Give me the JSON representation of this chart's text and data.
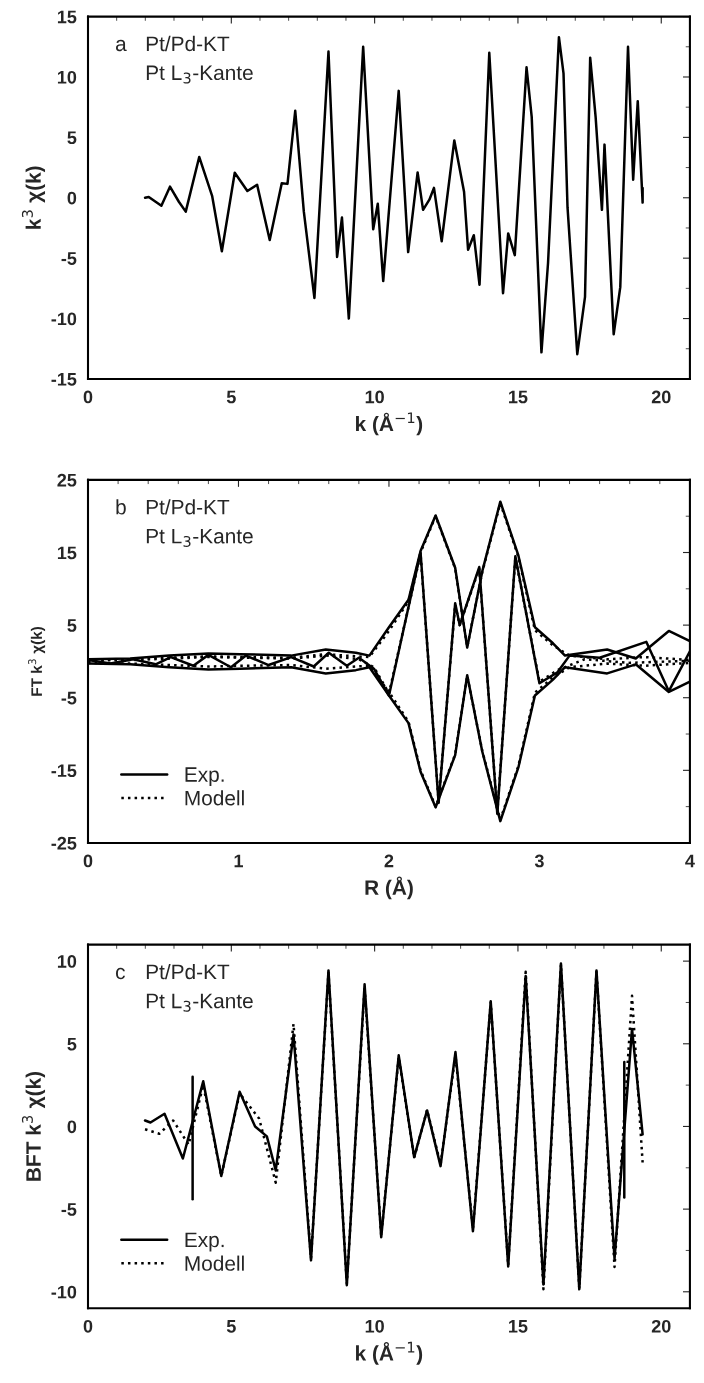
{
  "chart_data": [
    {
      "type": "line",
      "xlabel": "k (Å$^{−1}$)",
      "ylabel": "k$^{3}$ χ(k)",
      "xlim": [
        0,
        21
      ],
      "ylim": [
        -15,
        15
      ],
      "xticks": [
        0,
        5,
        10,
        15,
        20
      ],
      "yticks": [
        -15,
        -10,
        -5,
        0,
        5,
        10,
        15
      ],
      "annotations": [
        "a",
        "Pt/Pd-KT",
        "Pt L$_{3}$-Kante"
      ],
      "series": [
        {
          "color": "#000000",
          "line_style": "solid",
          "x": [
            1.99,
            2.12,
            2.56,
            2.86,
            3.17,
            3.41,
            3.88,
            4.33,
            4.67,
            5.12,
            5.56,
            5.9,
            6.34,
            6.76,
            6.96,
            7.23,
            7.53,
            7.9,
            8.39,
            8.69,
            8.86,
            9.1,
            9.6,
            9.95,
            10.11,
            10.3,
            10.84,
            11.17,
            11.5,
            11.69,
            11.91,
            12.07,
            12.34,
            12.78,
            13.12,
            13.26,
            13.46,
            13.66,
            14.0,
            14.48,
            14.66,
            14.89,
            15.3,
            15.48,
            15.82,
            16.05,
            16.43,
            16.59,
            16.73,
            17.07,
            17.34,
            17.52,
            17.71,
            17.93,
            18.02,
            18.34,
            18.57,
            18.84,
            19.02,
            19.18,
            19.35,
            19.35
          ],
          "values": [
            0,
            0.07,
            -0.66,
            0.92,
            -0.33,
            -1.15,
            3.38,
            0.16,
            -4.43,
            2.07,
            0.56,
            1.08,
            -3.5,
            1.21,
            1.15,
            7.2,
            -1.15,
            -8.3,
            12.1,
            -4.9,
            -1.64,
            -10.0,
            12.5,
            -2.6,
            -0.5,
            -6.9,
            8.85,
            -4.5,
            2.1,
            -1.0,
            -0.16,
            0.82,
            -3.6,
            4.75,
            0.5,
            -4.3,
            -3.1,
            -7.2,
            12.0,
            -7.9,
            -2.95,
            -4.75,
            10.8,
            6.7,
            -12.8,
            -5.4,
            13.3,
            10.3,
            -0.8,
            -12.95,
            -8.2,
            11.6,
            6.7,
            -1.0,
            4.4,
            -11.3,
            -7.4,
            12.5,
            1.5,
            8.0,
            -0.4,
            0.8
          ]
        }
      ]
    },
    {
      "type": "line",
      "xlabel": "R (Å)",
      "ylabel": "FT k$^{3}$ χ(k)",
      "xlim": [
        0,
        4
      ],
      "ylim": [
        -25,
        25
      ],
      "xticks": [
        0,
        1,
        2,
        3,
        4
      ],
      "yticks": [
        -25,
        -15,
        -5,
        5,
        15,
        25
      ],
      "legend": "bottom left",
      "annotations": [
        "b",
        "Pt/Pd-KT",
        "Pt L$_{3}$-Kante"
      ],
      "series": [
        {
          "name": "Exp.",
          "color": "#000000",
          "line_style": "solid",
          "x": [
            0,
            0.28,
            0.54,
            0.8,
            1.01,
            1.35,
            1.58,
            1.78,
            1.87,
            2.0,
            2.13,
            2.21,
            2.31,
            2.44,
            2.52,
            2.62,
            2.74,
            2.86,
            2.97,
            3.09,
            3.17,
            3.45,
            3.64,
            3.86,
            4.0
          ],
          "values": [
            0.3,
            0.4,
            0.8,
            1.1,
            1.0,
            0.8,
            1.65,
            1.2,
            0.8,
            4.7,
            8.5,
            15.2,
            20.1,
            12.9,
            1.9,
            12.4,
            22.0,
            14.6,
            4.7,
            2.5,
            0.8,
            1.65,
            0.4,
            4.2,
            2.8
          ]
        },
        {
          "color": "#000000",
          "line_style": "solid",
          "x": [
            0,
            0.28,
            0.54,
            0.8,
            1.01,
            1.35,
            1.58,
            1.78,
            1.87,
            2.0,
            2.13,
            2.21,
            2.31,
            2.44,
            2.52,
            2.62,
            2.74,
            2.86,
            2.97,
            3.09,
            3.17,
            3.45,
            3.64,
            3.86,
            4.0
          ],
          "values": [
            -0.3,
            -0.4,
            -0.8,
            -1.1,
            -1.0,
            -0.8,
            -1.65,
            -1.2,
            -0.8,
            -4.7,
            -8.5,
            -15.2,
            -20.1,
            -12.9,
            -1.9,
            -12.4,
            -22.0,
            -14.6,
            -4.7,
            -2.5,
            -0.8,
            -1.65,
            -0.4,
            -4.2,
            -2.8
          ]
        },
        {
          "color": "#000000",
          "line_style": "solid",
          "x": [
            0,
            0.15,
            0.3,
            0.45,
            0.55,
            0.7,
            0.8,
            0.95,
            1.05,
            1.2,
            1.35,
            1.5,
            1.6,
            1.72,
            1.8,
            1.9,
            2.0,
            2.21,
            2.33,
            2.44,
            2.47,
            2.6,
            2.72,
            2.84,
            3.0,
            3.12,
            3.2,
            3.4,
            3.71,
            3.86,
            4.0
          ],
          "values": [
            0.2,
            -0.3,
            0.3,
            -0.4,
            0.6,
            -0.6,
            0.9,
            -0.8,
            0.8,
            -0.5,
            0.6,
            -0.7,
            1.2,
            -0.6,
            0.5,
            -1.0,
            -4.7,
            15.0,
            -19.5,
            8.0,
            5.0,
            13.0,
            -21.0,
            14.5,
            -3.0,
            -1.5,
            0.8,
            0.5,
            2.7,
            -4.1,
            1.4
          ]
        },
        {
          "name": "Modell",
          "color": "#000000",
          "line_style": "dotted",
          "x": [
            0,
            0.28,
            0.54,
            0.8,
            1.01,
            1.35,
            1.58,
            1.78,
            1.87,
            2.0,
            2.13,
            2.21,
            2.31,
            2.44,
            2.52,
            2.62,
            2.74,
            2.86,
            2.97,
            3.09,
            3.2,
            3.45,
            3.7,
            4.0
          ],
          "values": [
            0.2,
            0.3,
            0.5,
            0.7,
            0.6,
            0.5,
            1.0,
            0.7,
            0.6,
            4.2,
            8.3,
            15.0,
            20.0,
            12.8,
            2.0,
            12.3,
            21.8,
            14.4,
            4.3,
            2.2,
            0.8,
            0.3,
            0.6,
            0.2
          ]
        },
        {
          "color": "#000000",
          "line_style": "dotted",
          "x": [
            0,
            0.28,
            0.54,
            0.8,
            1.01,
            1.35,
            1.58,
            1.78,
            1.87,
            2.0,
            2.13,
            2.21,
            2.31,
            2.44,
            2.52,
            2.62,
            2.74,
            2.86,
            2.97,
            3.09,
            3.2,
            3.45,
            3.7,
            4.0
          ],
          "values": [
            -0.2,
            -0.3,
            -0.5,
            -0.7,
            -0.6,
            -0.5,
            -1.0,
            -0.7,
            -0.6,
            -4.2,
            -8.3,
            -15.0,
            -20.0,
            -12.8,
            -2.0,
            -12.3,
            -21.8,
            -14.4,
            -4.3,
            -2.2,
            -0.8,
            -0.3,
            -0.6,
            -0.2
          ]
        },
        {
          "color": "#000000",
          "line_style": "dotted",
          "x": [
            0,
            0.3,
            0.55,
            0.8,
            1.05,
            1.35,
            1.6,
            1.8,
            1.9,
            2.0,
            2.21,
            2.33,
            2.44,
            2.47,
            2.6,
            2.72,
            2.84,
            3.0,
            3.12,
            3.3,
            3.6,
            4.0
          ],
          "values": [
            0.1,
            0.2,
            0.4,
            0.6,
            0.5,
            0.4,
            0.8,
            0.3,
            -0.8,
            -4.4,
            14.8,
            -19.3,
            7.8,
            5.0,
            12.8,
            -20.8,
            14.3,
            -2.8,
            -1.2,
            0.3,
            -0.2,
            0.1
          ]
        }
      ]
    },
    {
      "type": "line",
      "xlabel": "k (Å$^{−1}$)",
      "ylabel": "BFT k$^{3}$ χ(k)",
      "xlim": [
        0,
        21
      ],
      "ylim": [
        -11,
        11
      ],
      "xticks": [
        0,
        5,
        10,
        15,
        20
      ],
      "yticks": [
        -10,
        -5,
        0,
        5,
        10
      ],
      "legend": "bottom left",
      "annotations": [
        "c",
        "Pt/Pd-KT",
        "Pt L$_{3}$-Kante"
      ],
      "series": [
        {
          "name": "Exp.",
          "color": "#000000",
          "line_style": "solid",
          "x": [
            1.99,
            2.18,
            2.67,
            3.31,
            4.02,
            4.65,
            5.29,
            5.83,
            6.24,
            6.55,
            7.17,
            7.78,
            8.39,
            9.03,
            9.65,
            10.23,
            10.84,
            11.38,
            11.83,
            12.3,
            12.82,
            13.43,
            14.05,
            14.66,
            15.27,
            15.89,
            16.5,
            17.14,
            17.74,
            18.37,
            18.98,
            19.35
          ],
          "values": [
            0.36,
            0.24,
            0.77,
            -1.94,
            2.73,
            -3.0,
            2.1,
            0,
            -0.6,
            -2.66,
            5.56,
            -8.1,
            9.44,
            -9.6,
            8.6,
            -6.7,
            4.3,
            -1.86,
            0.97,
            -2.4,
            4.5,
            -6.34,
            7.57,
            -8.47,
            9.1,
            -9.56,
            9.85,
            -9.85,
            9.44,
            -8.0,
            5.9,
            -0.48
          ]
        },
        {
          "name": "Modell",
          "color": "#000000",
          "line_style": "dotted",
          "x": [
            1.99,
            2.49,
            2.97,
            3.51,
            4.02,
            4.65,
            5.29,
            5.97,
            6.55,
            7.17,
            7.78,
            8.39,
            9.03,
            9.65,
            10.23,
            10.84,
            11.38,
            11.83,
            12.3,
            12.82,
            13.43,
            14.05,
            14.66,
            15.27,
            15.89,
            16.5,
            17.14,
            17.74,
            18.37,
            18.98,
            19.35
          ],
          "values": [
            -0.17,
            -0.44,
            0.36,
            -1.1,
            2.5,
            -3.0,
            2.0,
            0.48,
            -3.4,
            6.2,
            -8.0,
            9.3,
            -9.5,
            8.4,
            -6.6,
            4.2,
            -1.9,
            1.0,
            -2.3,
            4.3,
            -6.2,
            7.5,
            -8.4,
            9.35,
            -9.85,
            9.8,
            -9.8,
            9.4,
            -8.5,
            7.9,
            -2.2
          ]
        },
        {
          "color": "#000000",
          "line_style": "solid",
          "x": [
            3.65,
            3.65
          ],
          "values": [
            3.0,
            -4.4
          ]
        },
        {
          "color": "#000000",
          "line_style": "solid",
          "x": [
            18.71,
            18.71
          ],
          "values": [
            3.9,
            -4.3
          ]
        }
      ]
    }
  ]
}
